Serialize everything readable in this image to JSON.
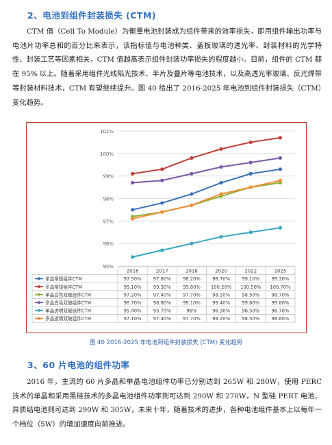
{
  "section2": {
    "heading": "2、电池到组件封装损失 (CTM)",
    "paragraph": "CTM 值（Cell To Module）为衡量电池封装成为组件带来的效率损失，即用组件输出功率与电池片功率总和的百分比来表示，该指标值与电池种类、盖板玻璃的透光率、封装材料的光学特性、封装工艺等因素相关，CTM 值越高表示组件封装功率损失的程度越小。目前，组件的 CTM 都在 95% 以上。随着采用组件光线陷光技术、半片及叠片等电池技术，以及高透光率玻璃、反光焊带等封装材料技术，CTM 有望继续提升。图 40 给出了 2016-2025 年电池到组件封装损失（CTM）变化趋势。"
  },
  "figure_caption": "图 40 2016-2025 年电池到组件封装损失 (CTM) 变化趋势",
  "section3": {
    "heading": "3、60 片电池的组件功率",
    "paragraph": "2016 年，主流的 60 片多晶和单晶电池组件功率已分别达到 265W 和 280W，使用 PERC 技术的单晶和采用黑硅技术的多晶电池组件功率则可达到 290W 和 270W，N 型硅 PERT 电池、异质结电池则可达到 290W 和 305W，未来十年，随着技术的进步，各种电池组件基本上以每年一个档位（5W）的增加速度向前推进。"
  },
  "chart_data": {
    "type": "line",
    "categories": [
      "2016",
      "2017",
      "2018",
      "2020",
      "2022",
      "2025"
    ],
    "ylim": [
      95,
      101
    ],
    "y_ticks": [
      "95%",
      "96%",
      "97%",
      "98%",
      "99%",
      "100%",
      "101%"
    ],
    "grid": true,
    "legend": "data-table-below",
    "series": [
      {
        "name": "单晶常规组件CTM",
        "color": "#3a6fb5",
        "values": [
          97.5,
          97.8,
          98.2,
          98.7,
          99.1,
          99.3
        ],
        "labels": [
          "97.50%",
          "97.80%",
          "98.20%",
          "98.70%",
          "99.10%",
          "99.30%"
        ]
      },
      {
        "name": "多晶常规组件CTM",
        "color": "#c0413a",
        "values": [
          99.1,
          99.3,
          99.8,
          100.2,
          100.5,
          100.7
        ],
        "labels": [
          "99.10%",
          "99.30%",
          "99.80%",
          "100.20%",
          "100.50%",
          "100.70%"
        ]
      },
      {
        "name": "单晶白色双玻组件CTM",
        "color": "#8db33c",
        "values": [
          97.2,
          97.4,
          97.7,
          98.1,
          98.5,
          98.7
        ],
        "labels": [
          "97.20%",
          "97.40%",
          "97.70%",
          "98.10%",
          "98.50%",
          "98.70%"
        ]
      },
      {
        "name": "多晶白色双玻组件CTM",
        "color": "#7b58a6",
        "values": [
          98.7,
          98.8,
          99.1,
          99.4,
          99.6,
          99.8
        ],
        "labels": [
          "98.70%",
          "98.80%",
          "99.10%",
          "99.40%",
          "99.60%",
          "99.80%"
        ]
      },
      {
        "name": "单晶透明双玻组件CTM",
        "color": "#3aa5c2",
        "values": [
          95.4,
          95.7,
          96.0,
          96.3,
          96.5,
          96.7
        ],
        "labels": [
          "95.40%",
          "95.70%",
          "96%",
          "96.30%",
          "96.50%",
          "96.70%"
        ]
      },
      {
        "name": "多晶透明双玻组件CTM",
        "color": "#ef8c34",
        "values": [
          97.1,
          97.4,
          97.7,
          98.2,
          98.5,
          98.8
        ],
        "labels": [
          "97.10%",
          "97.40%",
          "97.70%",
          "98.20%",
          "98.50%",
          "98.80%"
        ]
      }
    ]
  }
}
